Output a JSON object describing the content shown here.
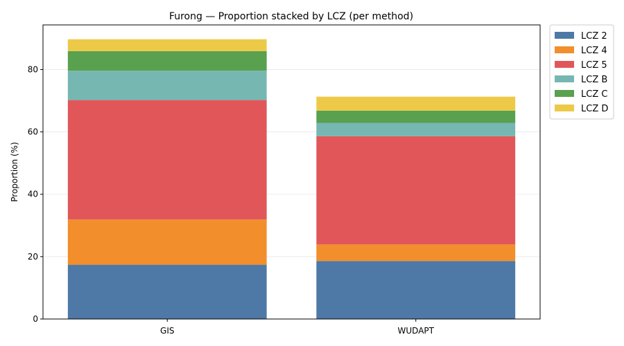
{
  "chart_data": {
    "type": "bar",
    "stacked": true,
    "title": "Furong — Proportion stacked by LCZ (per method)",
    "xlabel": "",
    "ylabel": "Proportion (%)",
    "categories": [
      "GIS",
      "WUDAPT"
    ],
    "ylim": [
      0,
      94.3
    ],
    "yticks": [
      0,
      20,
      40,
      60,
      80
    ],
    "grid": "y",
    "legend_position": "outside-right-top",
    "series": [
      {
        "name": "LCZ 2",
        "color": "#4e79a7",
        "values": [
          17.4,
          18.6
        ]
      },
      {
        "name": "LCZ 4",
        "color": "#f28e2b",
        "values": [
          14.5,
          5.3
        ]
      },
      {
        "name": "LCZ 5",
        "color": "#e15759",
        "values": [
          38.3,
          34.7
        ]
      },
      {
        "name": "LCZ B",
        "color": "#76b7b2",
        "values": [
          9.4,
          4.3
        ]
      },
      {
        "name": "LCZ C",
        "color": "#59a14f",
        "values": [
          6.3,
          3.9
        ]
      },
      {
        "name": "LCZ D",
        "color": "#edc948",
        "values": [
          3.8,
          4.5
        ]
      }
    ]
  }
}
